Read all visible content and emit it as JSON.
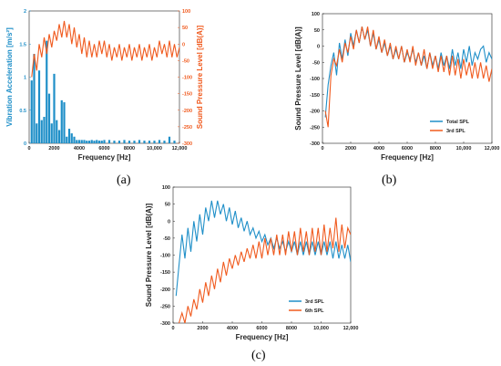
{
  "panel_labels": [
    "(a)",
    "(b)",
    "(c)"
  ],
  "colors": {
    "blue": "#1f8fc8",
    "orange": "#f05a1e",
    "axis": "#222222"
  },
  "chart_data": [
    {
      "id": "a",
      "type": "bar+line",
      "xlabel": "Frequency [Hz]",
      "xlim": [
        0,
        12000
      ],
      "xticks": [
        0,
        2000,
        4000,
        6000,
        8000,
        10000,
        12000
      ],
      "xticklabels": [
        "0",
        "2000",
        "4000",
        "6000",
        "8000",
        "10,000",
        "12,000"
      ],
      "y_left": {
        "label": "Vibration Acceleration [m/s²]",
        "lim": [
          0,
          2
        ],
        "ticks": [
          0,
          0.5,
          1,
          1.5,
          2
        ],
        "ticklabels": [
          "0",
          "0.5",
          "1",
          "1.5",
          "2"
        ]
      },
      "y_right": {
        "label": "Sound Pressure Level [dB(A)]",
        "lim": [
          -300,
          100
        ],
        "ticks": [
          -300,
          -250,
          -200,
          -150,
          -100,
          -50,
          0,
          50,
          100
        ],
        "ticklabels": [
          "-300",
          "-250",
          "-200",
          "-150",
          "-100",
          "-50",
          "0",
          "50",
          "100"
        ]
      },
      "bars": {
        "axis": "left",
        "x": [
          200,
          400,
          600,
          800,
          1000,
          1200,
          1400,
          1600,
          1800,
          2000,
          2200,
          2400,
          2600,
          2800,
          3000,
          3200,
          3400,
          3600,
          3800,
          4000,
          4200,
          4400,
          4600,
          4800,
          5000,
          5200,
          5400,
          5600,
          5800,
          6000,
          6400,
          6800,
          7200,
          7600,
          8000,
          8400,
          8800,
          9200,
          9600,
          10000,
          10400,
          10800,
          11200,
          11600
        ],
        "values": [
          0.95,
          1.35,
          0.3,
          1.1,
          0.35,
          0.4,
          1.55,
          0.75,
          0.3,
          1.05,
          0.35,
          0.2,
          0.65,
          0.62,
          0.1,
          0.22,
          0.15,
          0.1,
          0.05,
          0.05,
          0.05,
          0.05,
          0.04,
          0.04,
          0.05,
          0.04,
          0.05,
          0.04,
          0.04,
          0.05,
          0.05,
          0.04,
          0.04,
          0.05,
          0.04,
          0.04,
          0.05,
          0.04,
          0.04,
          0.04,
          0.05,
          0.04,
          0.1,
          0.04
        ]
      },
      "series": [
        {
          "axis": "right",
          "color": "orange",
          "x": [
            200,
            400,
            600,
            800,
            1000,
            1200,
            1400,
            1600,
            1800,
            2000,
            2200,
            2400,
            2600,
            2800,
            3000,
            3200,
            3400,
            3600,
            3800,
            4000,
            4200,
            4400,
            4600,
            4800,
            5000,
            5200,
            5400,
            5600,
            5800,
            6000,
            6200,
            6400,
            6600,
            6800,
            7000,
            7200,
            7400,
            7600,
            7800,
            8000,
            8200,
            8400,
            8600,
            8800,
            9000,
            9200,
            9400,
            9600,
            9800,
            10000,
            10200,
            10400,
            10600,
            10800,
            11000,
            11200,
            11400,
            11600,
            11800,
            12000
          ],
          "values": [
            -100,
            -30,
            -80,
            0,
            -40,
            20,
            -30,
            30,
            -10,
            40,
            10,
            60,
            20,
            70,
            20,
            60,
            0,
            50,
            -10,
            30,
            -30,
            20,
            -40,
            10,
            -40,
            0,
            -40,
            10,
            -30,
            10,
            -40,
            0,
            -50,
            -10,
            -40,
            0,
            -50,
            -10,
            -40,
            0,
            -50,
            -10,
            -40,
            0,
            -50,
            -10,
            -40,
            0,
            -50,
            -10,
            -40,
            10,
            -30,
            0,
            -40,
            10,
            -40,
            0,
            -40,
            -10
          ]
        }
      ]
    },
    {
      "id": "b",
      "type": "line",
      "xlabel": "Frequency [Hz]",
      "ylabel": "Sound Pressure Level [dB(A)]",
      "xlim": [
        0,
        12000
      ],
      "ylim": [
        -300,
        100
      ],
      "xticks": [
        0,
        2000,
        4000,
        6000,
        8000,
        10000,
        12000
      ],
      "xticklabels": [
        "0",
        "2000",
        "4000",
        "6000",
        "8000",
        "10,000",
        "12,000"
      ],
      "yticks": [
        -300,
        -250,
        -200,
        -150,
        -100,
        -50,
        0,
        50,
        100
      ],
      "yticklabels": [
        "-300",
        "-250",
        "-200",
        "-150",
        "-100",
        "-50",
        "0",
        "50",
        "100"
      ],
      "legend": {
        "position": "bottom-right"
      },
      "series": [
        {
          "name": "Total SPL",
          "color": "blue",
          "x": [
            200,
            400,
            600,
            800,
            1000,
            1200,
            1400,
            1600,
            1800,
            2000,
            2200,
            2400,
            2600,
            2800,
            3000,
            3200,
            3400,
            3600,
            3800,
            4000,
            4200,
            4400,
            4600,
            4800,
            5000,
            5200,
            5400,
            5600,
            5800,
            6000,
            6200,
            6400,
            6600,
            6800,
            7000,
            7200,
            7400,
            7600,
            7800,
            8000,
            8200,
            8400,
            8600,
            8800,
            9000,
            9200,
            9400,
            9600,
            9800,
            10000,
            10200,
            10400,
            10600,
            10800,
            11000,
            11200,
            11400,
            11600,
            11800,
            12000
          ],
          "values": [
            -220,
            -120,
            -60,
            -20,
            -90,
            10,
            -40,
            20,
            -30,
            40,
            0,
            50,
            10,
            60,
            20,
            50,
            0,
            40,
            -10,
            20,
            -20,
            10,
            -30,
            0,
            -40,
            -10,
            -40,
            0,
            -50,
            -20,
            -40,
            -10,
            -50,
            -20,
            -60,
            -30,
            -70,
            -20,
            -60,
            -30,
            -70,
            -20,
            -60,
            -30,
            -70,
            -10,
            -60,
            -20,
            -70,
            -10,
            -50,
            0,
            -60,
            -20,
            -40,
            -10,
            0,
            -50,
            -20,
            -40
          ]
        },
        {
          "name": "3rd SPL",
          "color": "orange",
          "x": [
            200,
            400,
            600,
            800,
            1000,
            1200,
            1400,
            1600,
            1800,
            2000,
            2200,
            2400,
            2600,
            2800,
            3000,
            3200,
            3400,
            3600,
            3800,
            4000,
            4200,
            4400,
            4600,
            4800,
            5000,
            5200,
            5400,
            5600,
            5800,
            6000,
            6200,
            6400,
            6600,
            6800,
            7000,
            7200,
            7400,
            7600,
            7800,
            8000,
            8200,
            8400,
            8600,
            8800,
            9000,
            9200,
            9400,
            9600,
            9800,
            10000,
            10200,
            10400,
            10600,
            10800,
            11000,
            11200,
            11400,
            11600,
            11800,
            12000
          ],
          "values": [
            -200,
            -250,
            -90,
            -40,
            -60,
            -10,
            -50,
            10,
            -20,
            30,
            -10,
            50,
            10,
            60,
            20,
            60,
            0,
            50,
            -10,
            30,
            -20,
            20,
            -30,
            10,
            -40,
            0,
            -40,
            0,
            -50,
            -10,
            -50,
            0,
            -60,
            -20,
            -60,
            -10,
            -70,
            -20,
            -70,
            -30,
            -80,
            -30,
            -80,
            -30,
            -90,
            -30,
            -90,
            -40,
            -100,
            -40,
            -90,
            -50,
            -100,
            -50,
            -100,
            -50,
            -100,
            -60,
            -110,
            -70
          ]
        }
      ]
    },
    {
      "id": "c",
      "type": "line",
      "xlabel": "Frequency [Hz]",
      "ylabel": "Sound Pressure Level [dB(A)]",
      "xlim": [
        0,
        12000
      ],
      "ylim": [
        -300,
        100
      ],
      "xticks": [
        0,
        2000,
        4000,
        6000,
        8000,
        10000,
        12000
      ],
      "xticklabels": [
        "0",
        "2000",
        "4000",
        "6000",
        "8000",
        "10,000",
        "12,000"
      ],
      "yticks": [
        -300,
        -250,
        -200,
        -150,
        -100,
        -50,
        0,
        50,
        100
      ],
      "yticklabels": [
        "-300",
        "-250",
        "-200",
        "-150",
        "-100",
        "-50",
        "0",
        "50",
        "100"
      ],
      "legend": {
        "position": "bottom-right"
      },
      "series": [
        {
          "name": "3rd SPL",
          "color": "blue",
          "x": [
            200,
            400,
            600,
            800,
            1000,
            1200,
            1400,
            1600,
            1800,
            2000,
            2200,
            2400,
            2600,
            2800,
            3000,
            3200,
            3400,
            3600,
            3800,
            4000,
            4200,
            4400,
            4600,
            4800,
            5000,
            5200,
            5400,
            5600,
            5800,
            6000,
            6200,
            6400,
            6600,
            6800,
            7000,
            7200,
            7400,
            7600,
            7800,
            8000,
            8200,
            8400,
            8600,
            8800,
            9000,
            9200,
            9400,
            9600,
            9800,
            10000,
            10200,
            10400,
            10600,
            10800,
            11000,
            11200,
            11400,
            11600,
            11800,
            12000
          ],
          "values": [
            -220,
            -130,
            -40,
            -110,
            -20,
            -90,
            0,
            -60,
            20,
            -40,
            40,
            0,
            60,
            10,
            60,
            20,
            50,
            0,
            40,
            -10,
            30,
            -20,
            10,
            -30,
            0,
            -40,
            -20,
            -50,
            -30,
            -60,
            -40,
            -70,
            -50,
            -80,
            -50,
            -80,
            -60,
            -90,
            -60,
            -90,
            -60,
            -100,
            -60,
            -100,
            -60,
            -100,
            -60,
            -100,
            -60,
            -100,
            -60,
            -100,
            -60,
            -110,
            -60,
            -110,
            -70,
            -110,
            -70,
            -120
          ]
        },
        {
          "name": "6th SPL",
          "color": "orange",
          "x": [
            400,
            600,
            800,
            1000,
            1200,
            1400,
            1600,
            1800,
            2000,
            2200,
            2400,
            2600,
            2800,
            3000,
            3200,
            3400,
            3600,
            3800,
            4000,
            4200,
            4400,
            4600,
            4800,
            5000,
            5200,
            5400,
            5600,
            5800,
            6000,
            6200,
            6400,
            6600,
            6800,
            7000,
            7200,
            7400,
            7600,
            7800,
            8000,
            8200,
            8400,
            8600,
            8800,
            9000,
            9200,
            9400,
            9600,
            9800,
            10000,
            10200,
            10400,
            10600,
            10800,
            11000,
            11200,
            11400,
            11600,
            11800,
            12000
          ],
          "values": [
            -300,
            -270,
            -300,
            -250,
            -280,
            -230,
            -260,
            -200,
            -240,
            -180,
            -220,
            -160,
            -200,
            -140,
            -180,
            -120,
            -160,
            -110,
            -140,
            -100,
            -130,
            -90,
            -120,
            -80,
            -110,
            -70,
            -110,
            -60,
            -110,
            -50,
            -100,
            -50,
            -100,
            -40,
            -100,
            -40,
            -100,
            -30,
            -90,
            -30,
            -100,
            -20,
            -90,
            -30,
            -100,
            -20,
            -90,
            -20,
            -100,
            -10,
            -90,
            -20,
            -80,
            10,
            -90,
            -10,
            -80,
            -20,
            -40
          ]
        }
      ]
    }
  ]
}
